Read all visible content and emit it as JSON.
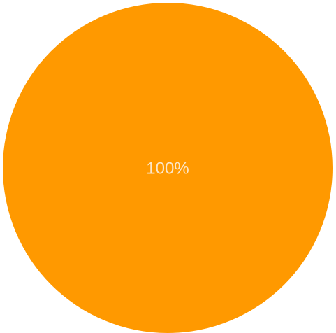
{
  "chart_data": {
    "type": "pie",
    "slices": [
      {
        "value": 100,
        "label": "100%",
        "color": "#ff9900"
      }
    ]
  }
}
